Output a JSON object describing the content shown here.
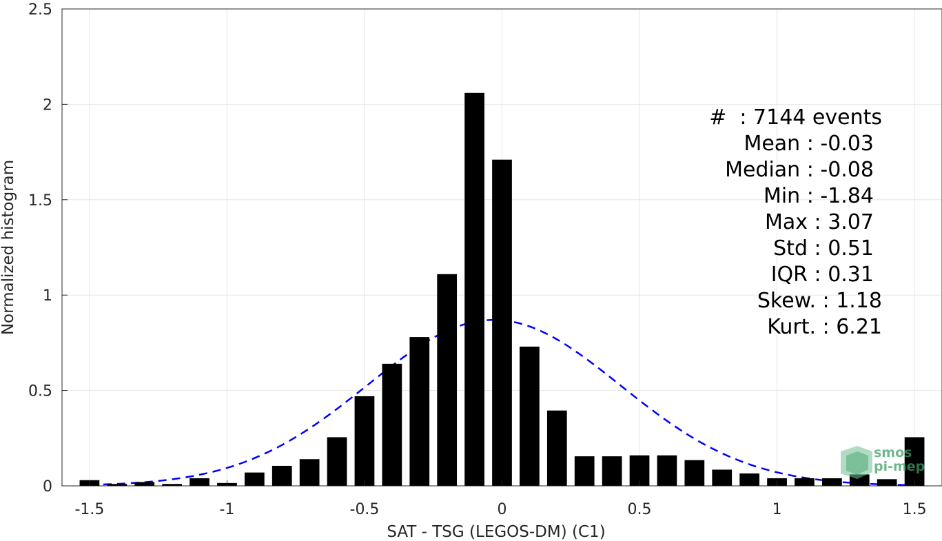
{
  "chart_data": {
    "type": "bar",
    "xlabel": "SAT - TSG (LEGOS-DM) (C1)",
    "ylabel": "Normalized histogram",
    "xlim": [
      -1.6,
      1.6
    ],
    "ylim": [
      0,
      2.5
    ],
    "grid": true,
    "xticks": [
      "-1.5",
      "-1",
      "-0.5",
      "0",
      "0.5",
      "1",
      "1.5"
    ],
    "yticks": [
      "0",
      "0.5",
      "1",
      "1.5",
      "2",
      "2.5"
    ],
    "x": [
      -1.5,
      -1.4,
      -1.3,
      -1.2,
      -1.1,
      -1.0,
      -0.9,
      -0.8,
      -0.7,
      -0.6,
      -0.5,
      -0.4,
      -0.3,
      -0.2,
      -0.1,
      0.0,
      0.1,
      0.2,
      0.3,
      0.4,
      0.5,
      0.6,
      0.7,
      0.8,
      0.9,
      1.0,
      1.1,
      1.2,
      1.3,
      1.4,
      1.5
    ],
    "values": [
      0.03,
      0.01,
      0.02,
      0.01,
      0.04,
      0.015,
      0.07,
      0.105,
      0.14,
      0.255,
      0.47,
      0.64,
      0.78,
      1.11,
      2.06,
      1.71,
      0.73,
      0.395,
      0.155,
      0.155,
      0.16,
      0.16,
      0.135,
      0.085,
      0.065,
      0.04,
      0.04,
      0.04,
      0.06,
      0.035,
      0.255
    ],
    "bar_color": "#000000",
    "fit_curve": {
      "style": "dashed",
      "color": "#0000ff",
      "mean": -0.03,
      "std": 0.46,
      "peak": 0.87
    },
    "annotations": [
      "#  : 7144 events",
      "Mean : -0.03",
      "Median : -0.08",
      "Min : -1.84",
      "Max : 3.07",
      "Std : 0.51",
      "IQR : 0.31",
      "Skew. : 1.18",
      "Kurt. : 6.21"
    ]
  },
  "logo": {
    "line1": "smos",
    "line2": "pi-mep"
  }
}
